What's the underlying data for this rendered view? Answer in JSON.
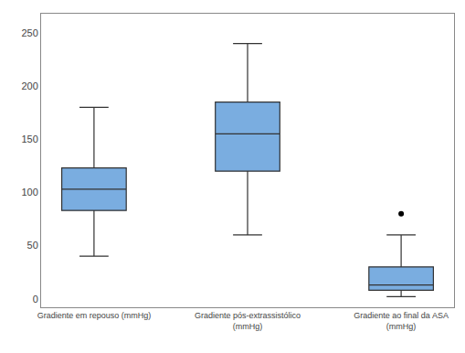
{
  "chart_data": {
    "type": "box",
    "categories": [
      "Gradiente em repouso (mmHg)",
      "Gradiente pós-extrassistólico\n(mmHg)",
      "Gradiente ao final da ASA\n(mmHg)"
    ],
    "boxes": [
      {
        "whisker_low": 40,
        "q1": 83,
        "median": 103,
        "q3": 123,
        "whisker_high": 180,
        "outliers": []
      },
      {
        "whisker_low": 60,
        "q1": 120,
        "median": 155,
        "q3": 185,
        "whisker_high": 240,
        "outliers": []
      },
      {
        "whisker_low": 2,
        "q1": 8,
        "median": 13,
        "q3": 30,
        "whisker_high": 60,
        "outliers": [
          80
        ]
      }
    ],
    "color": "#7aade0",
    "ylim": [
      -8,
      268
    ],
    "yticks": [
      0,
      50,
      100,
      150,
      200,
      250
    ],
    "grid": false
  }
}
